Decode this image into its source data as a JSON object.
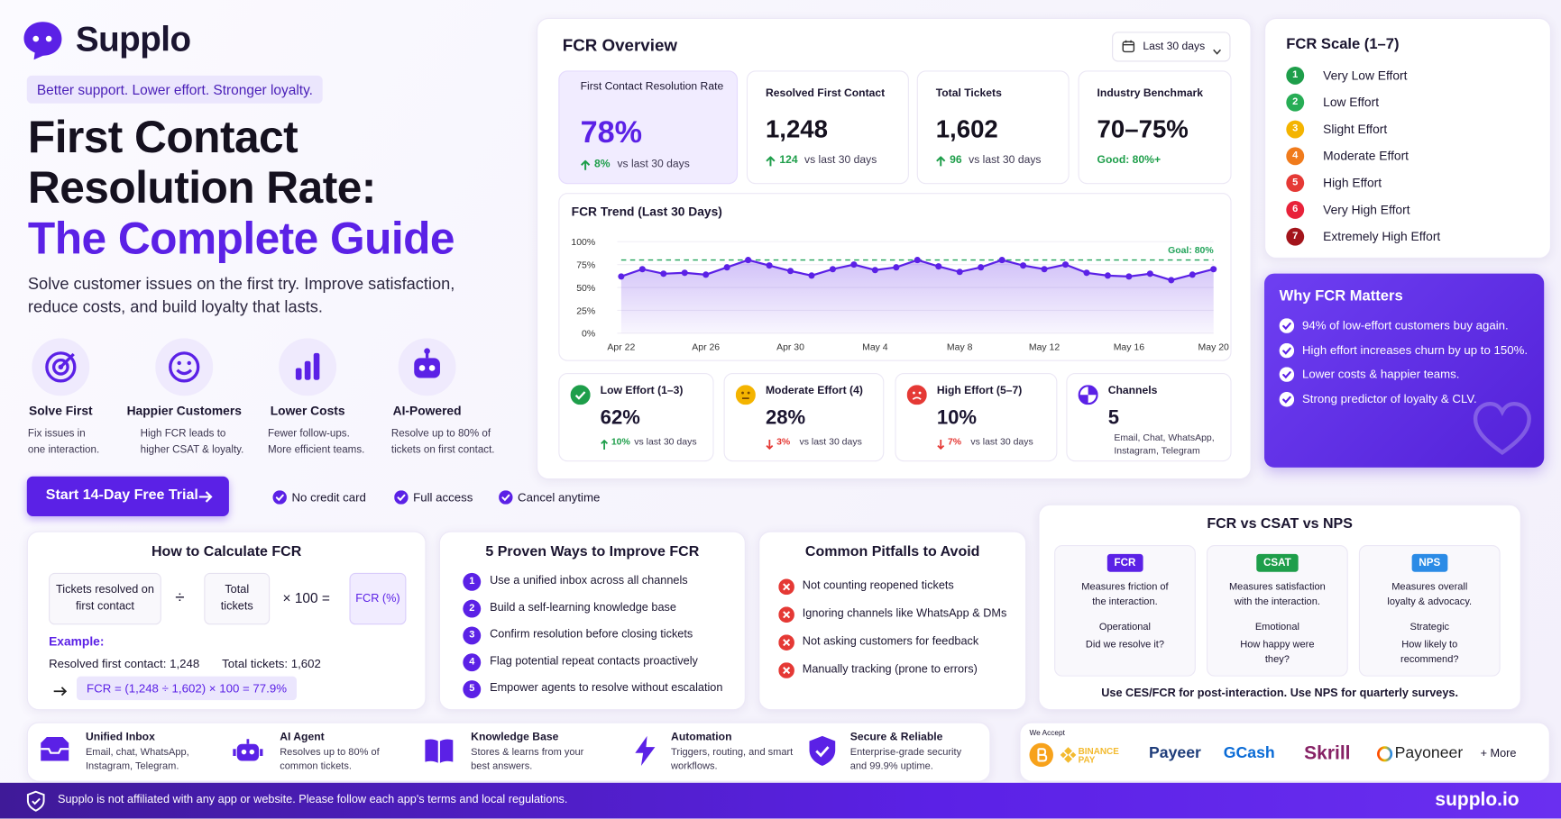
{
  "brand": {
    "name": "Supplo",
    "tagline": "Better support. Lower effort. Stronger loyalty.",
    "title_lines": [
      "First Contact",
      "Resolution Rate:",
      "The Complete Guide"
    ],
    "intro": "Solve customer issues on the first try. Improve satisfaction, reduce costs, and build loyalty that lasts."
  },
  "features": [
    {
      "title": "Solve First",
      "text": "Fix issues in one interaction."
    },
    {
      "title": "Happier Customers",
      "text": "High FCR leads to higher CSAT & loyalty."
    },
    {
      "title": "Lower Costs",
      "text": "Fewer follow-ups. More efficient teams."
    },
    {
      "title": "AI-Powered",
      "text": "Resolve up to 80% of tickets on first contact."
    }
  ],
  "cta": {
    "button": "Start 14-Day Free Trial",
    "checks": [
      "No credit card",
      "Full access",
      "Cancel anytime"
    ]
  },
  "overview": {
    "title": "FCR Overview",
    "period": "Last 30 days",
    "kpis": [
      {
        "label": "First Contact Resolution Rate",
        "value": "78%",
        "delta": "8%",
        "note": "vs last 30 days"
      },
      {
        "label": "Resolved First Contact",
        "value": "1,248",
        "delta": "124",
        "note": "vs last 30 days"
      },
      {
        "label": "Total Tickets",
        "value": "1,602",
        "delta": "96",
        "note": "vs last 30 days"
      },
      {
        "label": "Industry Benchmark",
        "value": "70–75%",
        "note": "Good: 80%+"
      }
    ],
    "efforts": [
      {
        "label": "Low Effort (1–3)",
        "value": "62%",
        "delta": "10%",
        "direction": "up",
        "note": "vs last 30 days"
      },
      {
        "label": "Moderate Effort (4)",
        "value": "28%",
        "delta": "3%",
        "direction": "down",
        "note": "vs last 30 days"
      },
      {
        "label": "High Effort (5–7)",
        "value": "10%",
        "delta": "7%",
        "direction": "down",
        "note": "vs last 30 days"
      },
      {
        "label": "Channels",
        "value": "5",
        "note": "Email, Chat, WhatsApp, Instagram, Telegram"
      }
    ]
  },
  "chart_data": {
    "type": "line",
    "title": "FCR Trend (Last 30 Days)",
    "categories": [
      "Apr 22",
      null,
      null,
      null,
      "Apr 26",
      null,
      null,
      null,
      "Apr 30",
      null,
      null,
      null,
      "May 4",
      null,
      null,
      null,
      "May 8",
      null,
      null,
      null,
      "May 12",
      null,
      null,
      null,
      "May 16",
      null,
      null,
      null,
      "May 20"
    ],
    "values": [
      62,
      70,
      65,
      66,
      64,
      72,
      80,
      74,
      68,
      63,
      70,
      75,
      69,
      72,
      80,
      73,
      67,
      72,
      80,
      74,
      70,
      75,
      66,
      63,
      62,
      65,
      58,
      64,
      70
    ],
    "color": "#5b21e6",
    "ylim": [
      0,
      100
    ],
    "yticks": [
      {
        "value": 0,
        "label": "0%"
      },
      {
        "value": 25,
        "label": "25%"
      },
      {
        "value": 50,
        "label": "50%"
      },
      {
        "value": 75,
        "label": "75%"
      },
      {
        "value": 100,
        "label": "100%"
      }
    ],
    "goal": 80,
    "goal_label": "Goal: 80%",
    "goal_color": "#22a35a",
    "grid": true
  },
  "scale": {
    "title": "FCR Scale (1–7)",
    "levels": [
      {
        "number": "1",
        "label": "Very Low Effort",
        "color": "#1e9e4a"
      },
      {
        "number": "2",
        "label": "Low Effort",
        "color": "#27ad55"
      },
      {
        "number": "3",
        "label": "Slight Effort",
        "color": "#f4b400"
      },
      {
        "number": "4",
        "label": "Moderate Effort",
        "color": "#f07b1c"
      },
      {
        "number": "5",
        "label": "High Effort",
        "color": "#e53935"
      },
      {
        "number": "6",
        "label": "Very High Effort",
        "color": "#e8223a"
      },
      {
        "number": "7",
        "label": "Extremely High Effort",
        "color": "#a3141b"
      }
    ]
  },
  "why": {
    "title": "Why FCR Matters",
    "points": [
      "94% of low-effort customers buy again.",
      "High effort increases churn by up to 150%.",
      "Lower costs & happier teams.",
      "Strong predictor of loyalty & CLV."
    ]
  },
  "calculate": {
    "title": "How to Calculate FCR",
    "numerator": "Tickets resolved on first contact",
    "divide": "÷",
    "denominator": "Total tickets",
    "multiply": "× 100 =",
    "result": "FCR (%)",
    "example_label": "Example:",
    "example_resolved": "Resolved first contact: 1,248",
    "example_total": "Total tickets: 1,602",
    "example_formula": "FCR = (1,248 ÷ 1,602) × 100 = 77.9%"
  },
  "improve": {
    "title": "5 Proven Ways to Improve FCR",
    "items": [
      {
        "number": "1",
        "text": "Use a unified inbox across all channels"
      },
      {
        "number": "2",
        "text": "Build a self-learning knowledge base"
      },
      {
        "number": "3",
        "text": "Confirm resolution before closing tickets"
      },
      {
        "number": "4",
        "text": "Flag potential repeat contacts proactively"
      },
      {
        "number": "5",
        "text": "Empower agents to resolve without escalation"
      }
    ]
  },
  "pitfalls": {
    "title": "Common Pitfalls to Avoid",
    "items": [
      "Not counting reopened tickets",
      "Ignoring channels like WhatsApp & DMs",
      "Not asking customers for feedback",
      "Manually tracking (prone to errors)"
    ]
  },
  "comparison": {
    "title": "FCR vs CSAT vs NPS",
    "columns": [
      {
        "tag": "FCR",
        "color": "#5b21e6",
        "description": "Measures friction of the interaction.",
        "kind": "Operational",
        "question": "Did we resolve it?"
      },
      {
        "tag": "CSAT",
        "color": "#1e9e4a",
        "description": "Measures satisfaction with the interaction.",
        "kind": "Emotional",
        "question": "How happy were they?"
      },
      {
        "tag": "NPS",
        "color": "#2b8be6",
        "description": "Measures overall loyalty & advocacy.",
        "kind": "Strategic",
        "question": "How likely to recommend?"
      }
    ],
    "note": "Use CES/FCR for post-interaction. Use NPS for quarterly surveys."
  },
  "capabilities": [
    {
      "title": "Unified Inbox",
      "text": "Email, chat, WhatsApp, Instagram, Telegram."
    },
    {
      "title": "AI Agent",
      "text": "Resolves up to 80% of common tickets."
    },
    {
      "title": "Knowledge Base",
      "text": "Stores & learns from your best answers."
    },
    {
      "title": "Automation",
      "text": "Triggers, routing, and smart workflows."
    },
    {
      "title": "Secure & Reliable",
      "text": "Enterprise-grade security and 99.9% uptime."
    }
  ],
  "payments": {
    "label": "We Accept",
    "methods": [
      "BINANCE PAY",
      "Payeer",
      "GCash",
      "Skrill",
      "Payoneer"
    ],
    "more": "+ More"
  },
  "footer": {
    "disclaimer": "Supplo is not affiliated with any app or website. Please follow each app's terms and local regulations.",
    "domain": "supplo.io"
  }
}
